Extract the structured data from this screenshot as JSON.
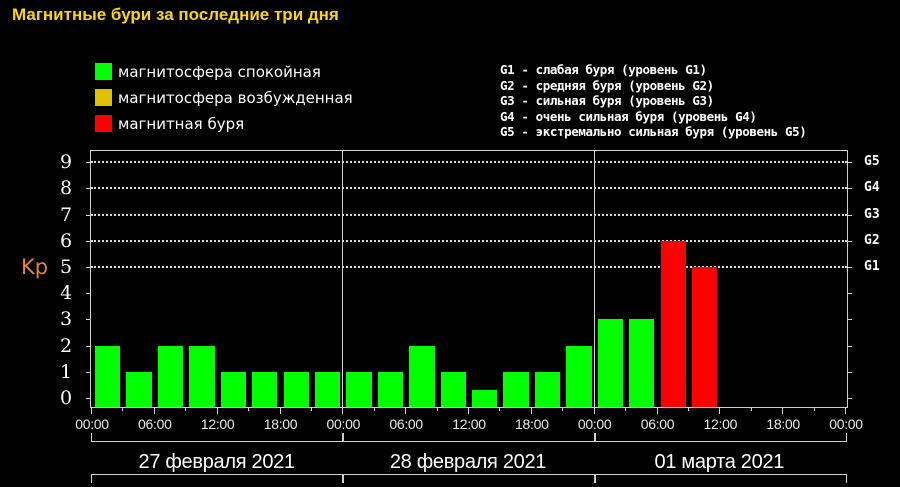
{
  "title": "Магнитные бури за последние три дня",
  "legend": [
    {
      "label": "магнитосфера спокойная",
      "color": "#00ff00"
    },
    {
      "label": "магнитосфера возбужденная",
      "color": "#e0c000"
    },
    {
      "label": "магнитная буря",
      "color": "#ff0000"
    }
  ],
  "storm_levels": [
    "G1 - слабая буря (уровень G1)",
    "G2 - средняя буря (уровень G2)",
    "G3 - сильная буря (уровень G3)",
    "G4 - очень сильная буря (уровень G4)",
    "G5 - экстремально сильная буря (уровень G5)"
  ],
  "y_axis_label": "Kp",
  "colors": {
    "quiet": "#00ff00",
    "active": "#e0c000",
    "storm": "#ff0000",
    "title": "#ffd700",
    "kp_label": "#e8822a"
  },
  "chart_data": {
    "type": "bar",
    "title": "Магнитные бури за последние три дня",
    "xlabel": "",
    "ylabel": "Kp",
    "ylim": [
      0,
      9
    ],
    "yticks": [
      0,
      1,
      2,
      3,
      4,
      5,
      6,
      7,
      8,
      9
    ],
    "right_ticks": [
      {
        "value": 5,
        "label": "G1"
      },
      {
        "value": 6,
        "label": "G2"
      },
      {
        "value": 7,
        "label": "G3"
      },
      {
        "value": 8,
        "label": "G4"
      },
      {
        "value": 9,
        "label": "G5"
      }
    ],
    "grid": "dotted horizontal lines at Kp 5-9",
    "x_tick_labels": [
      "00:00",
      "06:00",
      "12:00",
      "18:00",
      "00:00",
      "06:00",
      "12:00",
      "18:00",
      "00:00",
      "06:00",
      "12:00",
      "18:00",
      "00:00"
    ],
    "days": [
      "27 февраля 2021",
      "28 февраля 2021",
      "01 марта 2021"
    ],
    "categories": [
      "27.02 00:00",
      "27.02 03:00",
      "27.02 06:00",
      "27.02 09:00",
      "27.02 12:00",
      "27.02 15:00",
      "27.02 18:00",
      "27.02 21:00",
      "28.02 00:00",
      "28.02 03:00",
      "28.02 06:00",
      "28.02 09:00",
      "28.02 12:00",
      "28.02 15:00",
      "28.02 18:00",
      "28.02 21:00",
      "01.03 00:00",
      "01.03 03:00",
      "01.03 06:00",
      "01.03 09:00"
    ],
    "values": [
      2,
      1,
      2,
      2,
      1,
      1,
      1,
      1,
      1,
      1,
      2,
      1,
      0,
      1,
      1,
      2,
      3,
      3,
      6,
      5
    ],
    "bar_colors": [
      "green",
      "green",
      "green",
      "green",
      "green",
      "green",
      "green",
      "green",
      "green",
      "green",
      "green",
      "green",
      "green",
      "green",
      "green",
      "green",
      "green",
      "green",
      "red",
      "red"
    ],
    "legend": [
      "магнитосфера спокойная",
      "магнитосфера возбужденная",
      "магнитная буря"
    ],
    "legend_position": "top-left"
  }
}
